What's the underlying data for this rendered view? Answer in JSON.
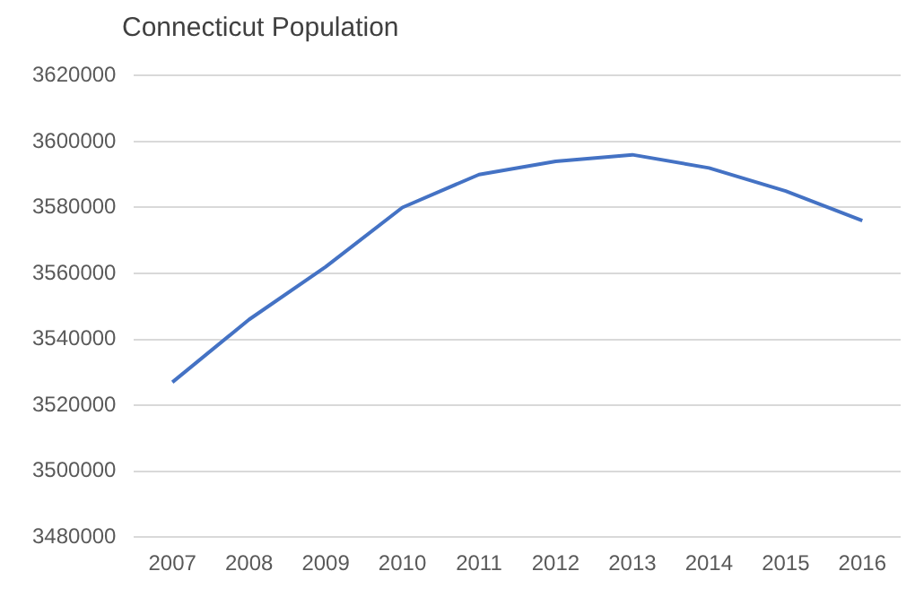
{
  "chart_data": {
    "type": "line",
    "title": "Connecticut Population",
    "categories": [
      "2007",
      "2008",
      "2009",
      "2010",
      "2011",
      "2012",
      "2013",
      "2014",
      "2015",
      "2016"
    ],
    "series": [
      {
        "color": "#4472c4",
        "values": [
          3527000,
          3546000,
          3562000,
          3580000,
          3590000,
          3594000,
          3596000,
          3592000,
          3585000,
          3576000
        ]
      }
    ],
    "ylim": [
      3480000,
      3620000
    ],
    "yticks": [
      3480000,
      3500000,
      3520000,
      3540000,
      3560000,
      3580000,
      3600000,
      3620000
    ],
    "grid": "y",
    "legend": false,
    "marker": "none",
    "line_style": "solid"
  }
}
